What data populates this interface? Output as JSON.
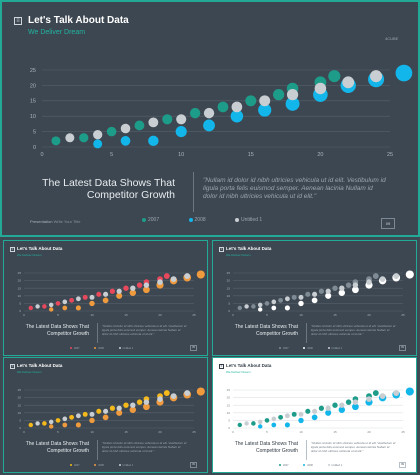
{
  "header": {
    "title": "Let's Talk About Data",
    "subtitle": "We Deliver Dream",
    "corner_label": "4CUBE"
  },
  "headline": {
    "line1": "The Latest Data Shows That",
    "line2": "Competitor Growth"
  },
  "quote": "\"Nullam id dolor id nibh ultricies vehicula ut id elit. Vestibulum id ligula porta felis euismod semper. Aenean lacinia Nullam id dolor id nibh ultricies vehicula ut id elit.\"",
  "footer": {
    "label": "Presentation",
    "sublabel": "Write Your Title",
    "page_number": "09"
  },
  "colors": {
    "background": "#3d4751",
    "accent": "#22aa97",
    "series_2007": "#1e9c8a",
    "series_2008": "#13b6ea",
    "series_untitled": "#c9ced3",
    "alt_red": "#e8485b",
    "alt_orange": "#f09a3e",
    "alt_gray": "#7e8b95",
    "alt_yellow": "#f6b91c"
  },
  "icons": [
    "slide-menu-icon"
  ],
  "chart_data": {
    "type": "scatter",
    "title": "",
    "xlabel": "",
    "ylabel": "",
    "xlim": [
      0,
      25
    ],
    "ylim": [
      0,
      25
    ],
    "xticks": [
      "0",
      "5",
      "10",
      "15",
      "20",
      "25"
    ],
    "yticks": [
      "0",
      "5",
      "10",
      "15",
      "20",
      "25"
    ],
    "grid": true,
    "legend_position": "bottom-center",
    "series": [
      {
        "name": "2007",
        "color": "#1e9c8a",
        "points": [
          [
            1,
            2
          ],
          [
            3,
            3
          ],
          [
            5,
            5
          ],
          [
            7,
            7
          ],
          [
            9,
            9
          ],
          [
            11,
            11
          ],
          [
            13,
            13
          ],
          [
            15,
            15
          ],
          [
            17,
            17
          ],
          [
            18,
            19
          ],
          [
            20,
            21
          ],
          [
            21,
            23
          ]
        ]
      },
      {
        "name": "2008",
        "color": "#13b6ea",
        "points": [
          [
            4,
            1
          ],
          [
            6,
            2
          ],
          [
            8,
            2
          ],
          [
            10,
            5
          ],
          [
            12,
            7
          ],
          [
            14,
            10
          ],
          [
            16,
            12
          ],
          [
            18,
            14
          ],
          [
            20,
            17
          ],
          [
            22,
            20
          ],
          [
            24,
            22
          ],
          [
            26,
            24
          ]
        ]
      },
      {
        "name": "Untitled 1",
        "color": "#c9ced3",
        "points": [
          [
            2,
            3
          ],
          [
            4,
            4
          ],
          [
            6,
            6
          ],
          [
            8,
            8
          ],
          [
            10,
            9
          ],
          [
            12,
            11
          ],
          [
            14,
            13
          ],
          [
            16,
            15
          ],
          [
            18,
            17
          ],
          [
            20,
            19
          ],
          [
            22,
            21
          ],
          [
            24,
            23
          ]
        ]
      }
    ],
    "thumbnail_variants": [
      {
        "background": "dark",
        "colors": [
          "#e8485b",
          "#f09a3e",
          "#c9ced3"
        ]
      },
      {
        "background": "dark",
        "colors": [
          "#7e8b95",
          "#ffffff",
          "#c9ced3"
        ]
      },
      {
        "background": "dark",
        "colors": [
          "#f6b91c",
          "#f09a3e",
          "#c9ced3"
        ]
      },
      {
        "background": "light",
        "colors": [
          "#1e9c8a",
          "#13b6ea",
          "#c9ced3"
        ]
      }
    ]
  }
}
